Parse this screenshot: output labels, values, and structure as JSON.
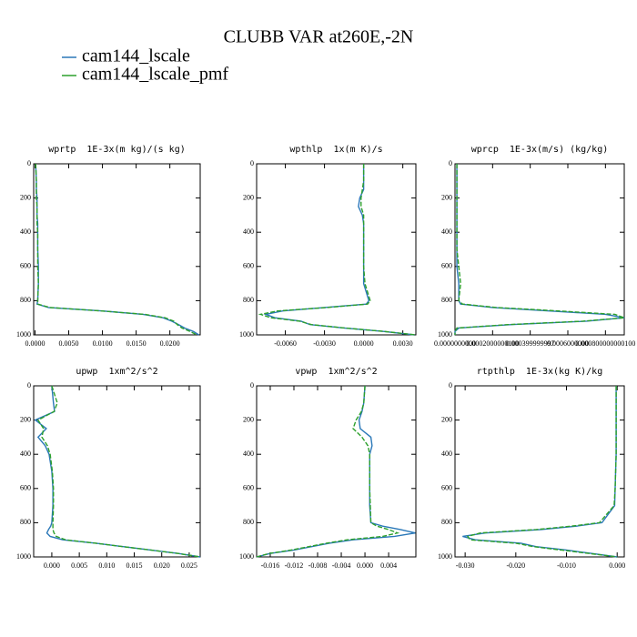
{
  "title": "CLUBB VAR at260E,-2N",
  "legend": [
    {
      "name": "cam144_lscale",
      "color": "#2a78b8"
    },
    {
      "name": "cam144_lscale_pmf",
      "color": "#2ca02c"
    }
  ],
  "chart_data": [
    {
      "type": "line",
      "title": "wprtp  1E-3x(m kg)/(s kg)",
      "y": [
        0,
        100,
        150,
        200,
        250,
        300,
        350,
        400,
        500,
        600,
        700,
        800,
        820,
        840,
        860,
        880,
        900,
        920,
        940,
        960,
        980,
        1000
      ],
      "ylim": [
        1000,
        0
      ],
      "yticks": [
        0,
        200,
        400,
        600,
        800,
        1000
      ],
      "xlim": [
        -0.0002,
        0.0245
      ],
      "xticks": [
        {
          "value": 0,
          "label": "0.0000"
        },
        {
          "value": 0.005,
          "label": "0.0050"
        },
        {
          "value": 0.01,
          "label": "0.0100"
        },
        {
          "value": 0.015,
          "label": "0.0150"
        },
        {
          "value": 0.02,
          "label": "0.0200"
        }
      ],
      "series": [
        {
          "values": [
            0.0001,
            0.0002,
            0.0002,
            0.0003,
            0.0003,
            0.0003,
            0.0004,
            0.0004,
            0.0004,
            0.0005,
            0.0005,
            0.0004,
            0.0003,
            0.002,
            0.01,
            0.016,
            0.019,
            0.0203,
            0.0213,
            0.0222,
            0.0235,
            0.0243
          ]
        },
        {
          "values": [
            0.0001,
            0.0002,
            0.0002,
            0.0002,
            0.0003,
            0.0003,
            0.0003,
            0.0004,
            0.0004,
            0.0004,
            0.0005,
            0.0004,
            0.0004,
            0.0022,
            0.0098,
            0.0163,
            0.0193,
            0.0206,
            0.0211,
            0.0218,
            0.023,
            0.024
          ]
        }
      ]
    },
    {
      "type": "line",
      "title": "wpthlp  1x(m K)/s",
      "y": [
        0,
        100,
        150,
        200,
        250,
        300,
        350,
        400,
        500,
        600,
        700,
        800,
        820,
        840,
        860,
        880,
        900,
        920,
        940,
        960,
        980,
        1000
      ],
      "ylim": [
        1000,
        0
      ],
      "yticks": [
        0,
        200,
        400,
        600,
        800,
        1000
      ],
      "xlim": [
        -0.0082,
        0.004
      ],
      "xticks": [
        {
          "value": -0.006,
          "label": "-0.0060"
        },
        {
          "value": -0.003,
          "label": "-0.0030"
        },
        {
          "value": 0,
          "label": "0.0000"
        },
        {
          "value": 0.003,
          "label": "0.0030"
        }
      ],
      "series": [
        {
          "values": [
            0,
            0,
            0,
            -0.0003,
            -0.0004,
            -0.0001,
            0,
            0,
            0,
            0,
            0,
            0.0004,
            0.0002,
            -0.003,
            -0.0062,
            -0.0075,
            -0.0068,
            -0.0048,
            -0.0041,
            -0.0015,
            0.0015,
            0.0039
          ]
        },
        {
          "values": [
            0,
            0,
            -0.0001,
            -0.0002,
            -0.0002,
            0,
            0,
            0,
            0,
            0,
            0.0001,
            0.0005,
            0.0003,
            -0.0028,
            -0.0066,
            -0.0079,
            -0.0071,
            -0.0049,
            -0.004,
            -0.0014,
            0.0016,
            0.004
          ]
        }
      ]
    },
    {
      "type": "line",
      "title": "wprcp  1E-3x(m/s) (kg/kg)",
      "y": [
        0,
        100,
        150,
        200,
        250,
        300,
        350,
        400,
        500,
        600,
        700,
        800,
        820,
        840,
        860,
        880,
        900,
        920,
        940,
        960,
        980,
        1000
      ],
      "ylim": [
        1000,
        0
      ],
      "yticks": [
        0,
        200,
        400,
        600,
        800,
        1000
      ],
      "xlim": [
        0,
        0.0009
      ],
      "xticks": [
        {
          "value": 0,
          "label": "0.0000000000"
        },
        {
          "value": 0.0002,
          "label": "0.0002000000100"
        },
        {
          "value": 0.0004,
          "label": "0.000399999997"
        },
        {
          "value": 0.0006,
          "label": "0.0006000000"
        },
        {
          "value": 0.0008,
          "label": "0.000800000000100"
        }
      ],
      "series": [
        {
          "values": [
            1e-05,
            1e-05,
            1e-05,
            1e-05,
            1e-05,
            1e-05,
            1e-05,
            1e-05,
            1e-05,
            1e-05,
            2e-05,
            2e-05,
            3e-05,
            0.0002,
            0.0005,
            0.0008,
            0.0009,
            0.0007,
            0.0003,
            2e-05,
            0,
            0
          ]
        },
        {
          "values": [
            1e-05,
            1e-05,
            1e-05,
            1e-05,
            1e-05,
            1e-05,
            1e-05,
            1e-05,
            1e-05,
            2e-05,
            3e-05,
            2e-05,
            4e-05,
            0.00022,
            0.00055,
            0.00085,
            0.0009,
            0.00068,
            0.00028,
            1e-05,
            0,
            0
          ]
        }
      ]
    },
    {
      "type": "line",
      "title": "upwp  1xm^2/s^2",
      "y": [
        0,
        100,
        150,
        200,
        250,
        300,
        350,
        400,
        500,
        600,
        700,
        800,
        820,
        840,
        860,
        880,
        900,
        920,
        940,
        960,
        980,
        1000
      ],
      "ylim": [
        1000,
        0
      ],
      "yticks": [
        0,
        200,
        400,
        600,
        800,
        1000
      ],
      "xlim": [
        -0.0033,
        0.027
      ],
      "xticks": [
        {
          "value": 0,
          "label": "0.000"
        },
        0.005,
        {
          "value": 0.01,
          "label": "0.010"
        },
        0.015,
        {
          "value": 0.02,
          "label": "0.020"
        },
        0.025
      ],
      "series": [
        {
          "values": [
            0,
            0.0003,
            0.0005,
            -0.003,
            -0.001,
            -0.0025,
            -0.0012,
            -0.0005,
            0,
            0.0002,
            0.0002,
            0,
            -0.0002,
            -0.0006,
            -0.0009,
            -0.0003,
            0.002,
            0.008,
            0.013,
            0.018,
            0.023,
            0.027
          ]
        },
        {
          "values": [
            0,
            0.001,
            0.0004,
            -0.0025,
            -0.0015,
            -0.0018,
            -0.0008,
            -0.0003,
            0.0001,
            0.0003,
            0.0003,
            0.0002,
            0.0002,
            0.0002,
            0.0004,
            0.0008,
            0.0025,
            0.008,
            0.013,
            0.018,
            0.023,
            0.027
          ]
        }
      ]
    },
    {
      "type": "line",
      "title": "vpwp  1xm^2/s^2",
      "y": [
        0,
        100,
        150,
        200,
        250,
        300,
        350,
        400,
        500,
        600,
        700,
        800,
        820,
        840,
        860,
        880,
        900,
        920,
        940,
        960,
        980,
        1000
      ],
      "ylim": [
        1000,
        0
      ],
      "yticks": [
        0,
        200,
        400,
        600,
        800,
        1000
      ],
      "xlim": [
        -0.0183,
        0.0086
      ],
      "xticks": [
        -0.016,
        -0.012,
        -0.008,
        -0.004,
        {
          "value": 0,
          "label": "0.000"
        },
        0.004
      ],
      "series": [
        {
          "values": [
            0,
            -0.0002,
            -0.0005,
            -0.001,
            -0.0008,
            0.001,
            0.0012,
            0.0008,
            0.0008,
            0.0008,
            0.0008,
            0.001,
            0.003,
            0.006,
            0.0085,
            0.005,
            -0.002,
            -0.006,
            -0.009,
            -0.012,
            -0.016,
            -0.0183
          ]
        },
        {
          "values": [
            0,
            -0.0002,
            -0.0006,
            -0.0015,
            -0.002,
            -0.0005,
            0.0005,
            0.0008,
            0.0008,
            0.0008,
            0.0009,
            0.001,
            0.002,
            0.004,
            0.0055,
            0.003,
            -0.003,
            -0.0065,
            -0.0095,
            -0.0125,
            -0.0162,
            -0.0183
          ]
        }
      ]
    },
    {
      "type": "line",
      "title": "rtpthlp  1E-3x(kg K)/kg",
      "y": [
        0,
        100,
        150,
        200,
        250,
        300,
        350,
        400,
        500,
        600,
        700,
        800,
        820,
        840,
        860,
        880,
        900,
        920,
        940,
        960,
        980,
        1000
      ],
      "ylim": [
        1000,
        0
      ],
      "yticks": [
        0,
        200,
        400,
        600,
        800,
        1000
      ],
      "xlim": [
        -0.032,
        0.0014
      ],
      "xticks": [
        {
          "value": -0.03,
          "label": "-0.030"
        },
        {
          "value": -0.02,
          "label": "-0.020"
        },
        {
          "value": -0.01,
          "label": "-0.010"
        },
        {
          "value": 0,
          "label": "0.000"
        }
      ],
      "series": [
        {
          "values": [
            -0.0002,
            -0.0002,
            -0.0002,
            -0.0002,
            -0.0002,
            -0.0002,
            -0.0002,
            -0.0002,
            -0.0003,
            -0.0004,
            -0.0005,
            -0.003,
            -0.008,
            -0.015,
            -0.026,
            -0.0305,
            -0.028,
            -0.019,
            -0.016,
            -0.01,
            -0.005,
            0
          ]
        },
        {
          "values": [
            -0.0002,
            -0.0002,
            -0.0002,
            -0.0002,
            -0.0002,
            -0.0002,
            -0.0002,
            -0.0002,
            -0.0003,
            -0.0004,
            -0.0006,
            -0.0035,
            -0.009,
            -0.016,
            -0.027,
            -0.0295,
            -0.029,
            -0.02,
            -0.0165,
            -0.011,
            -0.0055,
            0
          ]
        }
      ]
    }
  ]
}
